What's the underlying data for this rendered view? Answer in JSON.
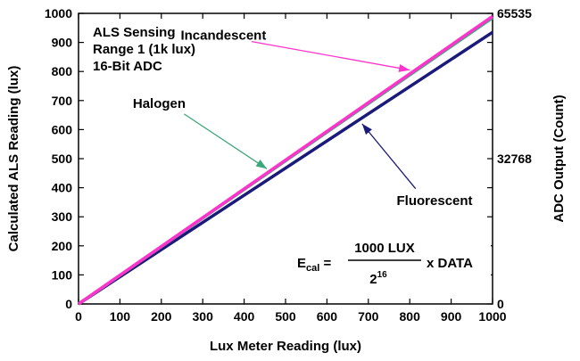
{
  "chart_data": {
    "type": "line",
    "xlabel": "Lux Meter Reading (lux)",
    "ylabel": "Calculated ALS Reading (lux)",
    "y2label": "ADC Output (Count)",
    "xlim": [
      0,
      1000
    ],
    "ylim": [
      0,
      1000
    ],
    "xticks": [
      "0",
      "100",
      "200",
      "300",
      "400",
      "500",
      "600",
      "700",
      "800",
      "900",
      "1000"
    ],
    "yticks": [
      "0",
      "100",
      "200",
      "300",
      "400",
      "500",
      "600",
      "700",
      "800",
      "900",
      "1000"
    ],
    "y2ticks": [
      {
        "value": 0,
        "label": "0"
      },
      {
        "value": 500,
        "label": "32768"
      },
      {
        "value": 1000,
        "label": "65535"
      }
    ],
    "grid": false,
    "info_lines": [
      "ALS Sensing",
      "Range 1 (1k lux)",
      "16-Bit ADC"
    ],
    "series": [
      {
        "name": "Incandescent",
        "color": "#ff33cc",
        "x": [
          0,
          1000
        ],
        "y": [
          0,
          990
        ]
      },
      {
        "name": "Halogen",
        "color": "#3aa87a",
        "x": [
          0,
          1000
        ],
        "y": [
          0,
          985
        ]
      },
      {
        "name": "Fluorescent",
        "color": "#1a1a7a",
        "x": [
          0,
          1000
        ],
        "y": [
          0,
          935
        ]
      }
    ],
    "annotations": [
      {
        "series": "Incandescent",
        "label_x": 350,
        "label_y": 910,
        "arrow_to": [
          800,
          805
        ]
      },
      {
        "series": "Halogen",
        "label_x": 195,
        "label_y": 675,
        "arrow_to": [
          455,
          465
        ]
      },
      {
        "series": "Fluorescent",
        "label_x": 860,
        "label_y": 340,
        "arrow_to": [
          685,
          620
        ]
      }
    ],
    "formula": {
      "lhs": "E",
      "lhs_sub": "cal",
      "numerator": "1000 LUX",
      "denominator": "2",
      "denominator_sup": "16",
      "tail": "x DATA"
    }
  }
}
